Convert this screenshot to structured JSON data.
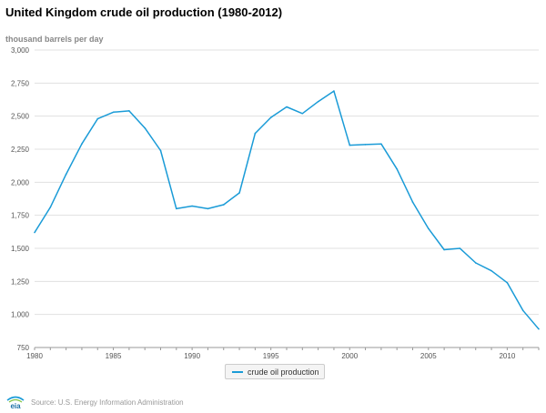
{
  "title": "United Kingdom crude oil production (1980-2012)",
  "unit_label": "thousand barrels per day",
  "source": "Source: U.S. Energy Information Administration",
  "logo_text": "eia",
  "colors": {
    "series": "#1a9bd7",
    "grid": "#e0e0e0",
    "axis": "#999999",
    "tick_text": "#555555"
  },
  "chart_data": {
    "type": "line",
    "title": "United Kingdom crude oil production (1980-2012)",
    "ylabel": "thousand barrels per day",
    "xlabel": "",
    "xlim": [
      1980,
      2012
    ],
    "ylim": [
      750,
      3000
    ],
    "x_ticks": [
      1980,
      1985,
      1990,
      1995,
      2000,
      2005,
      2010
    ],
    "y_ticks": [
      "750",
      "1,000",
      "1,250",
      "1,500",
      "1,750",
      "2,000",
      "2,250",
      "2,500",
      "2,750",
      "3,000"
    ],
    "y_tick_values": [
      750,
      1000,
      1250,
      1500,
      1750,
      2000,
      2250,
      2500,
      2750,
      3000
    ],
    "grid": true,
    "legend_position": "bottom-center",
    "series": [
      {
        "name": "crude oil production",
        "x": [
          1980,
          1981,
          1982,
          1983,
          1984,
          1985,
          1986,
          1987,
          1988,
          1989,
          1990,
          1991,
          1992,
          1993,
          1994,
          1995,
          1996,
          1997,
          1998,
          1999,
          2000,
          2001,
          2002,
          2003,
          2004,
          2005,
          2006,
          2007,
          2008,
          2009,
          2010,
          2011,
          2012
        ],
        "values": [
          1620,
          1810,
          2060,
          2290,
          2480,
          2530,
          2540,
          2410,
          2240,
          1800,
          1820,
          1800,
          1830,
          1920,
          2370,
          2490,
          2570,
          2520,
          2610,
          2690,
          2280,
          2285,
          2290,
          2100,
          1850,
          1650,
          1490,
          1500,
          1390,
          1330,
          1240,
          1030,
          890
        ]
      }
    ]
  }
}
